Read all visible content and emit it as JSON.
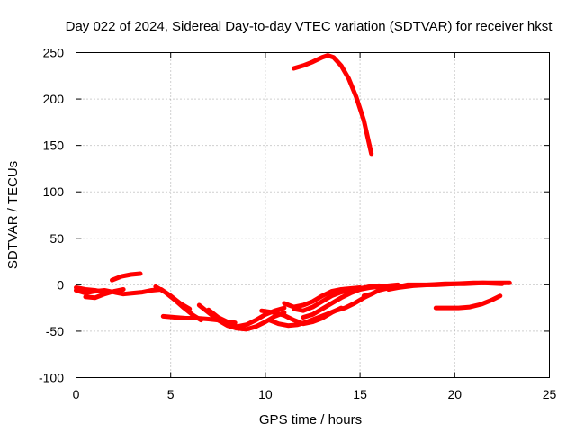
{
  "chart_data": {
    "type": "line",
    "title": "Day 022 of 2024, Sidereal Day-to-day VTEC variation (SDTVAR) for receiver hkst",
    "xlabel": "GPS time / hours",
    "ylabel": "SDTVAR / TECUs",
    "xlim": [
      0,
      25
    ],
    "ylim": [
      -100,
      250
    ],
    "xticks": [
      0,
      5,
      10,
      15,
      20,
      25
    ],
    "yticks": [
      -100,
      -50,
      0,
      50,
      100,
      150,
      200,
      250
    ],
    "grid": true,
    "color": "#ff0000",
    "series": [
      {
        "values": [
          [
            0.0,
            -6
          ],
          [
            0.5,
            -9
          ],
          [
            1.0,
            -7
          ],
          [
            1.5,
            -6
          ],
          [
            2.0,
            -8
          ],
          [
            2.5,
            -10
          ],
          [
            3.0,
            -9
          ],
          [
            3.5,
            -8
          ],
          [
            4.0,
            -6
          ],
          [
            4.5,
            -5
          ],
          [
            5.0,
            -12
          ],
          [
            5.5,
            -20
          ],
          [
            6.0,
            -26
          ]
        ]
      },
      {
        "values": [
          [
            0.5,
            -13
          ],
          [
            1.0,
            -14
          ],
          [
            1.5,
            -10
          ],
          [
            2.0,
            -7
          ],
          [
            2.5,
            -5
          ]
        ]
      },
      {
        "values": [
          [
            0.0,
            -3
          ],
          [
            0.5,
            -5
          ],
          [
            1.0,
            -6
          ],
          [
            1.5,
            -8
          ]
        ]
      },
      {
        "values": [
          [
            1.9,
            5
          ],
          [
            2.4,
            9
          ],
          [
            2.9,
            11
          ],
          [
            3.4,
            12
          ]
        ]
      },
      {
        "values": [
          [
            4.2,
            -2
          ],
          [
            4.7,
            -8
          ],
          [
            5.2,
            -16
          ],
          [
            5.7,
            -25
          ],
          [
            6.2,
            -33
          ],
          [
            6.6,
            -38
          ]
        ]
      },
      {
        "values": [
          [
            4.6,
            -34
          ],
          [
            5.2,
            -35
          ],
          [
            5.8,
            -36
          ],
          [
            6.4,
            -36
          ],
          [
            7.0,
            -37
          ],
          [
            7.5,
            -38
          ],
          [
            8.0,
            -40
          ],
          [
            8.4,
            -41
          ]
        ]
      },
      {
        "values": [
          [
            6.5,
            -22
          ],
          [
            7.0,
            -30
          ],
          [
            7.5,
            -38
          ],
          [
            8.0,
            -44
          ],
          [
            8.5,
            -47
          ],
          [
            9.0,
            -48
          ],
          [
            9.5,
            -45
          ],
          [
            10.0,
            -40
          ],
          [
            10.5,
            -34
          ],
          [
            11.0,
            -30
          ]
        ]
      },
      {
        "values": [
          [
            7.0,
            -27
          ],
          [
            7.5,
            -35
          ],
          [
            8.0,
            -40
          ],
          [
            8.5,
            -45
          ],
          [
            9.0,
            -43
          ],
          [
            9.5,
            -38
          ],
          [
            10.0,
            -32
          ],
          [
            10.5,
            -28
          ],
          [
            11.0,
            -25
          ]
        ]
      },
      {
        "values": [
          [
            9.8,
            -28
          ],
          [
            10.5,
            -30
          ],
          [
            11.0,
            -33
          ],
          [
            11.5,
            -38
          ],
          [
            12.0,
            -42
          ],
          [
            12.5,
            -40
          ],
          [
            13.0,
            -36
          ],
          [
            13.5,
            -30
          ],
          [
            14.0,
            -25
          ]
        ]
      },
      {
        "values": [
          [
            10.2,
            -38
          ],
          [
            10.7,
            -42
          ],
          [
            11.2,
            -44
          ],
          [
            11.7,
            -43
          ],
          [
            12.2,
            -40
          ],
          [
            12.7,
            -36
          ],
          [
            13.2,
            -32
          ],
          [
            13.7,
            -28
          ],
          [
            14.2,
            -25
          ],
          [
            14.7,
            -20
          ],
          [
            15.2,
            -14
          ],
          [
            15.7,
            -9
          ]
        ]
      },
      {
        "values": [
          [
            11.0,
            -20
          ],
          [
            11.5,
            -24
          ],
          [
            12.0,
            -22
          ],
          [
            12.5,
            -18
          ],
          [
            13.0,
            -12
          ],
          [
            13.5,
            -7
          ],
          [
            14.0,
            -5
          ],
          [
            14.5,
            -4
          ],
          [
            15.0,
            -3
          ]
        ]
      },
      {
        "values": [
          [
            11.5,
            -26
          ],
          [
            12.0,
            -28
          ],
          [
            12.5,
            -24
          ],
          [
            13.0,
            -18
          ],
          [
            13.5,
            -12
          ],
          [
            14.0,
            -8
          ],
          [
            14.5,
            -6
          ],
          [
            15.0,
            -4
          ],
          [
            15.5,
            -2
          ],
          [
            16.0,
            -1
          ],
          [
            16.5,
            -2
          ]
        ]
      },
      {
        "values": [
          [
            12.0,
            -35
          ],
          [
            12.5,
            -32
          ],
          [
            13.0,
            -26
          ],
          [
            13.5,
            -20
          ],
          [
            14.0,
            -14
          ],
          [
            14.5,
            -9
          ],
          [
            15.0,
            -5
          ],
          [
            15.5,
            -3
          ],
          [
            16.0,
            -2
          ],
          [
            16.5,
            -1
          ],
          [
            17.0,
            0
          ]
        ]
      },
      {
        "values": [
          [
            15.2,
            -12
          ],
          [
            15.6,
            -10
          ],
          [
            16.0,
            -6
          ],
          [
            16.4,
            -4
          ],
          [
            16.8,
            -3
          ]
        ]
      },
      {
        "values": [
          [
            16.8,
            -3
          ],
          [
            17.5,
            0
          ],
          [
            18.2,
            0
          ],
          [
            19.0,
            0
          ],
          [
            20.0,
            1
          ],
          [
            21.0,
            2
          ],
          [
            22.0,
            2
          ],
          [
            22.9,
            2
          ]
        ]
      },
      {
        "values": [
          [
            16.5,
            -5
          ],
          [
            17.0,
            -3
          ],
          [
            17.8,
            -1
          ],
          [
            18.6,
            0
          ],
          [
            19.5,
            1
          ],
          [
            20.5,
            1
          ],
          [
            21.5,
            2
          ],
          [
            22.5,
            1
          ]
        ]
      },
      {
        "values": [
          [
            19.0,
            -25
          ],
          [
            19.6,
            -25
          ],
          [
            20.2,
            -25
          ],
          [
            20.8,
            -24
          ],
          [
            21.4,
            -21
          ],
          [
            22.0,
            -16
          ],
          [
            22.4,
            -12
          ]
        ]
      },
      {
        "values": [
          [
            11.5,
            233
          ],
          [
            12.0,
            236
          ],
          [
            12.5,
            240
          ],
          [
            13.0,
            245
          ],
          [
            13.3,
            247
          ],
          [
            13.6,
            245
          ],
          [
            14.0,
            236
          ],
          [
            14.4,
            222
          ],
          [
            14.8,
            202
          ],
          [
            15.2,
            177
          ],
          [
            15.6,
            141
          ]
        ]
      }
    ]
  }
}
